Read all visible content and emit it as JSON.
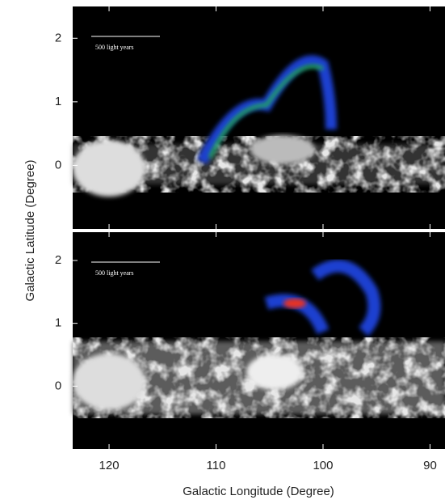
{
  "chart_data": [
    {
      "type": "image",
      "scale_label": "500 light years",
      "ylabel": "Galactic Latitude (Degree)",
      "xlim": [
        123.4,
        88.6
      ],
      "ylim": [
        -1,
        2.5
      ],
      "yticks": [
        0,
        1,
        2
      ]
    },
    {
      "type": "image",
      "scale_label": "500 light years",
      "xlabel": "Galactic Longitude (Degree)",
      "xlim": [
        123.4,
        88.6
      ],
      "ylim": [
        -1,
        2.45
      ],
      "yticks": [
        0,
        1,
        2
      ],
      "xticks": [
        120,
        110,
        100,
        90
      ]
    }
  ]
}
